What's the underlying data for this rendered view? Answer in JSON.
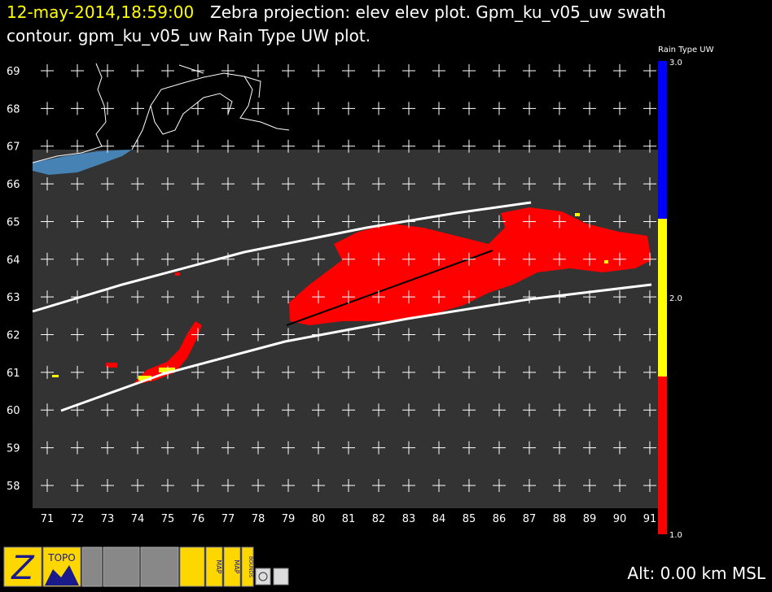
{
  "header": {
    "time": "12-may-2014,18:59:00",
    "line1": "Zebra projection: elev elev  plot.  Gpm_ku_v05_uw swath",
    "line2": "contour.  gpm_ku_v05_uw Rain Type UW  plot."
  },
  "map": {
    "y_labels": [
      "69",
      "68",
      "67",
      "66",
      "65",
      "64",
      "63",
      "62",
      "61",
      "60",
      "59",
      "58"
    ],
    "x_labels": [
      "71",
      "72",
      "73",
      "74",
      "75",
      "76",
      "77",
      "78",
      "79",
      "80",
      "81",
      "82",
      "83",
      "84",
      "85",
      "86",
      "87",
      "88",
      "89",
      "90",
      "91"
    ]
  },
  "colorbar": {
    "title": "Rain Type UW",
    "labels": [
      "3.0",
      "2.0",
      "1.0"
    ]
  },
  "toolbar": {
    "icons": [
      "Z",
      "TOPO",
      "MAP",
      "MAP",
      "BOUNDS"
    ]
  },
  "status": "Alt: 0.00 km MSL"
}
